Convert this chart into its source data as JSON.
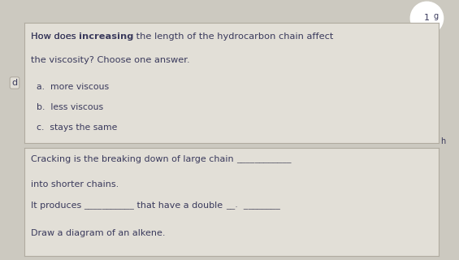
{
  "bg_color": "#ccc9c0",
  "box1_bg": "#e2dfd7",
  "box2_bg": "#e2dfd7",
  "label_d": "d",
  "label_g": "g",
  "label_h": "h",
  "label_1": "1",
  "q_pre": "How does ",
  "q_bold": "increasing",
  "q_post": " the length of the hydrocarbon chain affect",
  "q_line2": "the viscosity? Choose one answer.",
  "answer_a": "a.  more viscous",
  "answer_b": "b.  less viscous",
  "answer_c": "c.  stays the same",
  "crack1_pre": "Cracking is the breaking down of large chain ",
  "crack1_blank": "____________",
  "crack2": "into shorter chains.",
  "crack3_pre": "It produces ",
  "crack3_blank1": "___________",
  "crack3_mid": " that have a double ",
  "crack3_blank2": "__.  ________",
  "draw": "Draw a diagram of an alkene.",
  "text_color": "#3a3a5c",
  "blank_color": "#5a5a6a"
}
